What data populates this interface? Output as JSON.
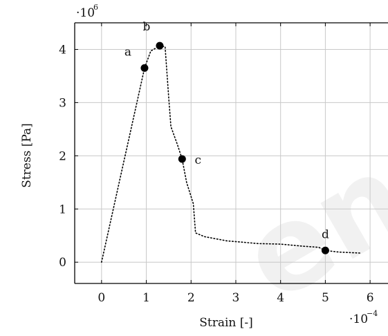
{
  "chart_data": {
    "type": "line",
    "x_label": "Strain [-]",
    "y_label": "Stress [Pa]",
    "x_scale_text": "·10",
    "x_scale_exp": "−4",
    "y_scale_text": "·10",
    "y_scale_exp": "6",
    "x_multiplier": 0.0001,
    "y_multiplier": 1000000,
    "xlim": [
      -0.6,
      6.4
    ],
    "ylim": [
      -0.4,
      4.5
    ],
    "x_ticks": [
      0,
      1,
      2,
      3,
      4,
      5,
      6
    ],
    "y_ticks": [
      0,
      1,
      2,
      3,
      4
    ],
    "grid": true,
    "line_style": "dotted",
    "series": [
      {
        "points": [
          [
            0,
            0
          ],
          [
            0.96,
            3.65
          ],
          [
            1.1,
            3.97
          ],
          [
            1.3,
            4.07
          ],
          [
            1.42,
            4.05
          ],
          [
            1.5,
            3.1
          ],
          [
            1.55,
            2.55
          ],
          [
            1.7,
            2.2
          ],
          [
            1.8,
            1.94
          ],
          [
            1.9,
            1.5
          ],
          [
            2.05,
            1.1
          ],
          [
            2.1,
            0.55
          ],
          [
            2.3,
            0.48
          ],
          [
            2.8,
            0.4
          ],
          [
            3.5,
            0.35
          ],
          [
            4.0,
            0.34
          ],
          [
            4.5,
            0.3
          ],
          [
            4.85,
            0.28
          ],
          [
            5.0,
            0.22
          ],
          [
            5.3,
            0.19
          ],
          [
            5.8,
            0.17
          ]
        ]
      }
    ],
    "marked_points": [
      {
        "label": "a",
        "x": 0.96,
        "y": 3.65
      },
      {
        "label": "b",
        "x": 1.3,
        "y": 4.07
      },
      {
        "label": "c",
        "x": 1.8,
        "y": 1.94
      },
      {
        "label": "d",
        "x": 5.0,
        "y": 0.22
      }
    ]
  },
  "watermark": {
    "text": "en"
  }
}
